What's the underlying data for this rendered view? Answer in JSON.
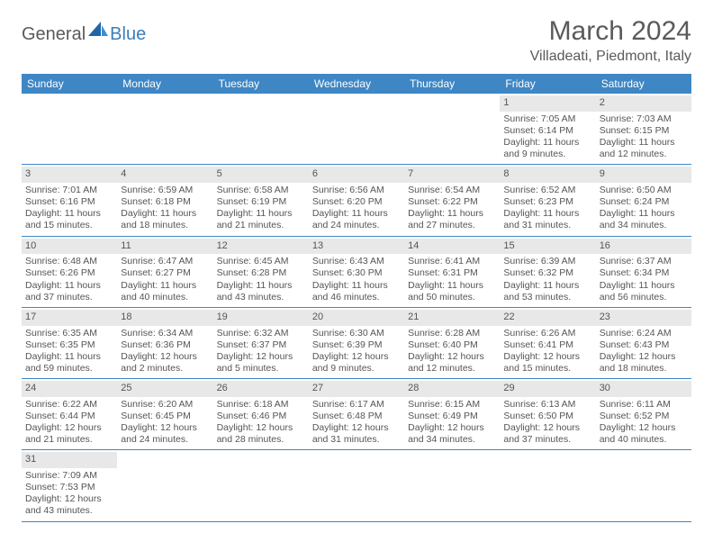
{
  "brand": {
    "name_part1": "General",
    "name_part2": "Blue",
    "color_general": "#5a5a5a",
    "color_blue": "#3a7db8"
  },
  "header": {
    "month_title": "March 2024",
    "location": "Villadeati, Piedmont, Italy"
  },
  "theme": {
    "header_bg": "#3e86c4",
    "header_text": "#ffffff",
    "daynum_bg": "#e8e8e8",
    "text_color": "#555555",
    "row_border": "#3e86c4",
    "background": "#ffffff"
  },
  "day_headers": [
    "Sunday",
    "Monday",
    "Tuesday",
    "Wednesday",
    "Thursday",
    "Friday",
    "Saturday"
  ],
  "weeks": [
    [
      {
        "num": "",
        "sunrise": "",
        "sunset": "",
        "daylight1": "",
        "daylight2": ""
      },
      {
        "num": "",
        "sunrise": "",
        "sunset": "",
        "daylight1": "",
        "daylight2": ""
      },
      {
        "num": "",
        "sunrise": "",
        "sunset": "",
        "daylight1": "",
        "daylight2": ""
      },
      {
        "num": "",
        "sunrise": "",
        "sunset": "",
        "daylight1": "",
        "daylight2": ""
      },
      {
        "num": "",
        "sunrise": "",
        "sunset": "",
        "daylight1": "",
        "daylight2": ""
      },
      {
        "num": "1",
        "sunrise": "Sunrise: 7:05 AM",
        "sunset": "Sunset: 6:14 PM",
        "daylight1": "Daylight: 11 hours",
        "daylight2": "and 9 minutes."
      },
      {
        "num": "2",
        "sunrise": "Sunrise: 7:03 AM",
        "sunset": "Sunset: 6:15 PM",
        "daylight1": "Daylight: 11 hours",
        "daylight2": "and 12 minutes."
      }
    ],
    [
      {
        "num": "3",
        "sunrise": "Sunrise: 7:01 AM",
        "sunset": "Sunset: 6:16 PM",
        "daylight1": "Daylight: 11 hours",
        "daylight2": "and 15 minutes."
      },
      {
        "num": "4",
        "sunrise": "Sunrise: 6:59 AM",
        "sunset": "Sunset: 6:18 PM",
        "daylight1": "Daylight: 11 hours",
        "daylight2": "and 18 minutes."
      },
      {
        "num": "5",
        "sunrise": "Sunrise: 6:58 AM",
        "sunset": "Sunset: 6:19 PM",
        "daylight1": "Daylight: 11 hours",
        "daylight2": "and 21 minutes."
      },
      {
        "num": "6",
        "sunrise": "Sunrise: 6:56 AM",
        "sunset": "Sunset: 6:20 PM",
        "daylight1": "Daylight: 11 hours",
        "daylight2": "and 24 minutes."
      },
      {
        "num": "7",
        "sunrise": "Sunrise: 6:54 AM",
        "sunset": "Sunset: 6:22 PM",
        "daylight1": "Daylight: 11 hours",
        "daylight2": "and 27 minutes."
      },
      {
        "num": "8",
        "sunrise": "Sunrise: 6:52 AM",
        "sunset": "Sunset: 6:23 PM",
        "daylight1": "Daylight: 11 hours",
        "daylight2": "and 31 minutes."
      },
      {
        "num": "9",
        "sunrise": "Sunrise: 6:50 AM",
        "sunset": "Sunset: 6:24 PM",
        "daylight1": "Daylight: 11 hours",
        "daylight2": "and 34 minutes."
      }
    ],
    [
      {
        "num": "10",
        "sunrise": "Sunrise: 6:48 AM",
        "sunset": "Sunset: 6:26 PM",
        "daylight1": "Daylight: 11 hours",
        "daylight2": "and 37 minutes."
      },
      {
        "num": "11",
        "sunrise": "Sunrise: 6:47 AM",
        "sunset": "Sunset: 6:27 PM",
        "daylight1": "Daylight: 11 hours",
        "daylight2": "and 40 minutes."
      },
      {
        "num": "12",
        "sunrise": "Sunrise: 6:45 AM",
        "sunset": "Sunset: 6:28 PM",
        "daylight1": "Daylight: 11 hours",
        "daylight2": "and 43 minutes."
      },
      {
        "num": "13",
        "sunrise": "Sunrise: 6:43 AM",
        "sunset": "Sunset: 6:30 PM",
        "daylight1": "Daylight: 11 hours",
        "daylight2": "and 46 minutes."
      },
      {
        "num": "14",
        "sunrise": "Sunrise: 6:41 AM",
        "sunset": "Sunset: 6:31 PM",
        "daylight1": "Daylight: 11 hours",
        "daylight2": "and 50 minutes."
      },
      {
        "num": "15",
        "sunrise": "Sunrise: 6:39 AM",
        "sunset": "Sunset: 6:32 PM",
        "daylight1": "Daylight: 11 hours",
        "daylight2": "and 53 minutes."
      },
      {
        "num": "16",
        "sunrise": "Sunrise: 6:37 AM",
        "sunset": "Sunset: 6:34 PM",
        "daylight1": "Daylight: 11 hours",
        "daylight2": "and 56 minutes."
      }
    ],
    [
      {
        "num": "17",
        "sunrise": "Sunrise: 6:35 AM",
        "sunset": "Sunset: 6:35 PM",
        "daylight1": "Daylight: 11 hours",
        "daylight2": "and 59 minutes."
      },
      {
        "num": "18",
        "sunrise": "Sunrise: 6:34 AM",
        "sunset": "Sunset: 6:36 PM",
        "daylight1": "Daylight: 12 hours",
        "daylight2": "and 2 minutes."
      },
      {
        "num": "19",
        "sunrise": "Sunrise: 6:32 AM",
        "sunset": "Sunset: 6:37 PM",
        "daylight1": "Daylight: 12 hours",
        "daylight2": "and 5 minutes."
      },
      {
        "num": "20",
        "sunrise": "Sunrise: 6:30 AM",
        "sunset": "Sunset: 6:39 PM",
        "daylight1": "Daylight: 12 hours",
        "daylight2": "and 9 minutes."
      },
      {
        "num": "21",
        "sunrise": "Sunrise: 6:28 AM",
        "sunset": "Sunset: 6:40 PM",
        "daylight1": "Daylight: 12 hours",
        "daylight2": "and 12 minutes."
      },
      {
        "num": "22",
        "sunrise": "Sunrise: 6:26 AM",
        "sunset": "Sunset: 6:41 PM",
        "daylight1": "Daylight: 12 hours",
        "daylight2": "and 15 minutes."
      },
      {
        "num": "23",
        "sunrise": "Sunrise: 6:24 AM",
        "sunset": "Sunset: 6:43 PM",
        "daylight1": "Daylight: 12 hours",
        "daylight2": "and 18 minutes."
      }
    ],
    [
      {
        "num": "24",
        "sunrise": "Sunrise: 6:22 AM",
        "sunset": "Sunset: 6:44 PM",
        "daylight1": "Daylight: 12 hours",
        "daylight2": "and 21 minutes."
      },
      {
        "num": "25",
        "sunrise": "Sunrise: 6:20 AM",
        "sunset": "Sunset: 6:45 PM",
        "daylight1": "Daylight: 12 hours",
        "daylight2": "and 24 minutes."
      },
      {
        "num": "26",
        "sunrise": "Sunrise: 6:18 AM",
        "sunset": "Sunset: 6:46 PM",
        "daylight1": "Daylight: 12 hours",
        "daylight2": "and 28 minutes."
      },
      {
        "num": "27",
        "sunrise": "Sunrise: 6:17 AM",
        "sunset": "Sunset: 6:48 PM",
        "daylight1": "Daylight: 12 hours",
        "daylight2": "and 31 minutes."
      },
      {
        "num": "28",
        "sunrise": "Sunrise: 6:15 AM",
        "sunset": "Sunset: 6:49 PM",
        "daylight1": "Daylight: 12 hours",
        "daylight2": "and 34 minutes."
      },
      {
        "num": "29",
        "sunrise": "Sunrise: 6:13 AM",
        "sunset": "Sunset: 6:50 PM",
        "daylight1": "Daylight: 12 hours",
        "daylight2": "and 37 minutes."
      },
      {
        "num": "30",
        "sunrise": "Sunrise: 6:11 AM",
        "sunset": "Sunset: 6:52 PM",
        "daylight1": "Daylight: 12 hours",
        "daylight2": "and 40 minutes."
      }
    ],
    [
      {
        "num": "31",
        "sunrise": "Sunrise: 7:09 AM",
        "sunset": "Sunset: 7:53 PM",
        "daylight1": "Daylight: 12 hours",
        "daylight2": "and 43 minutes."
      },
      {
        "num": "",
        "sunrise": "",
        "sunset": "",
        "daylight1": "",
        "daylight2": ""
      },
      {
        "num": "",
        "sunrise": "",
        "sunset": "",
        "daylight1": "",
        "daylight2": ""
      },
      {
        "num": "",
        "sunrise": "",
        "sunset": "",
        "daylight1": "",
        "daylight2": ""
      },
      {
        "num": "",
        "sunrise": "",
        "sunset": "",
        "daylight1": "",
        "daylight2": ""
      },
      {
        "num": "",
        "sunrise": "",
        "sunset": "",
        "daylight1": "",
        "daylight2": ""
      },
      {
        "num": "",
        "sunrise": "",
        "sunset": "",
        "daylight1": "",
        "daylight2": ""
      }
    ]
  ]
}
